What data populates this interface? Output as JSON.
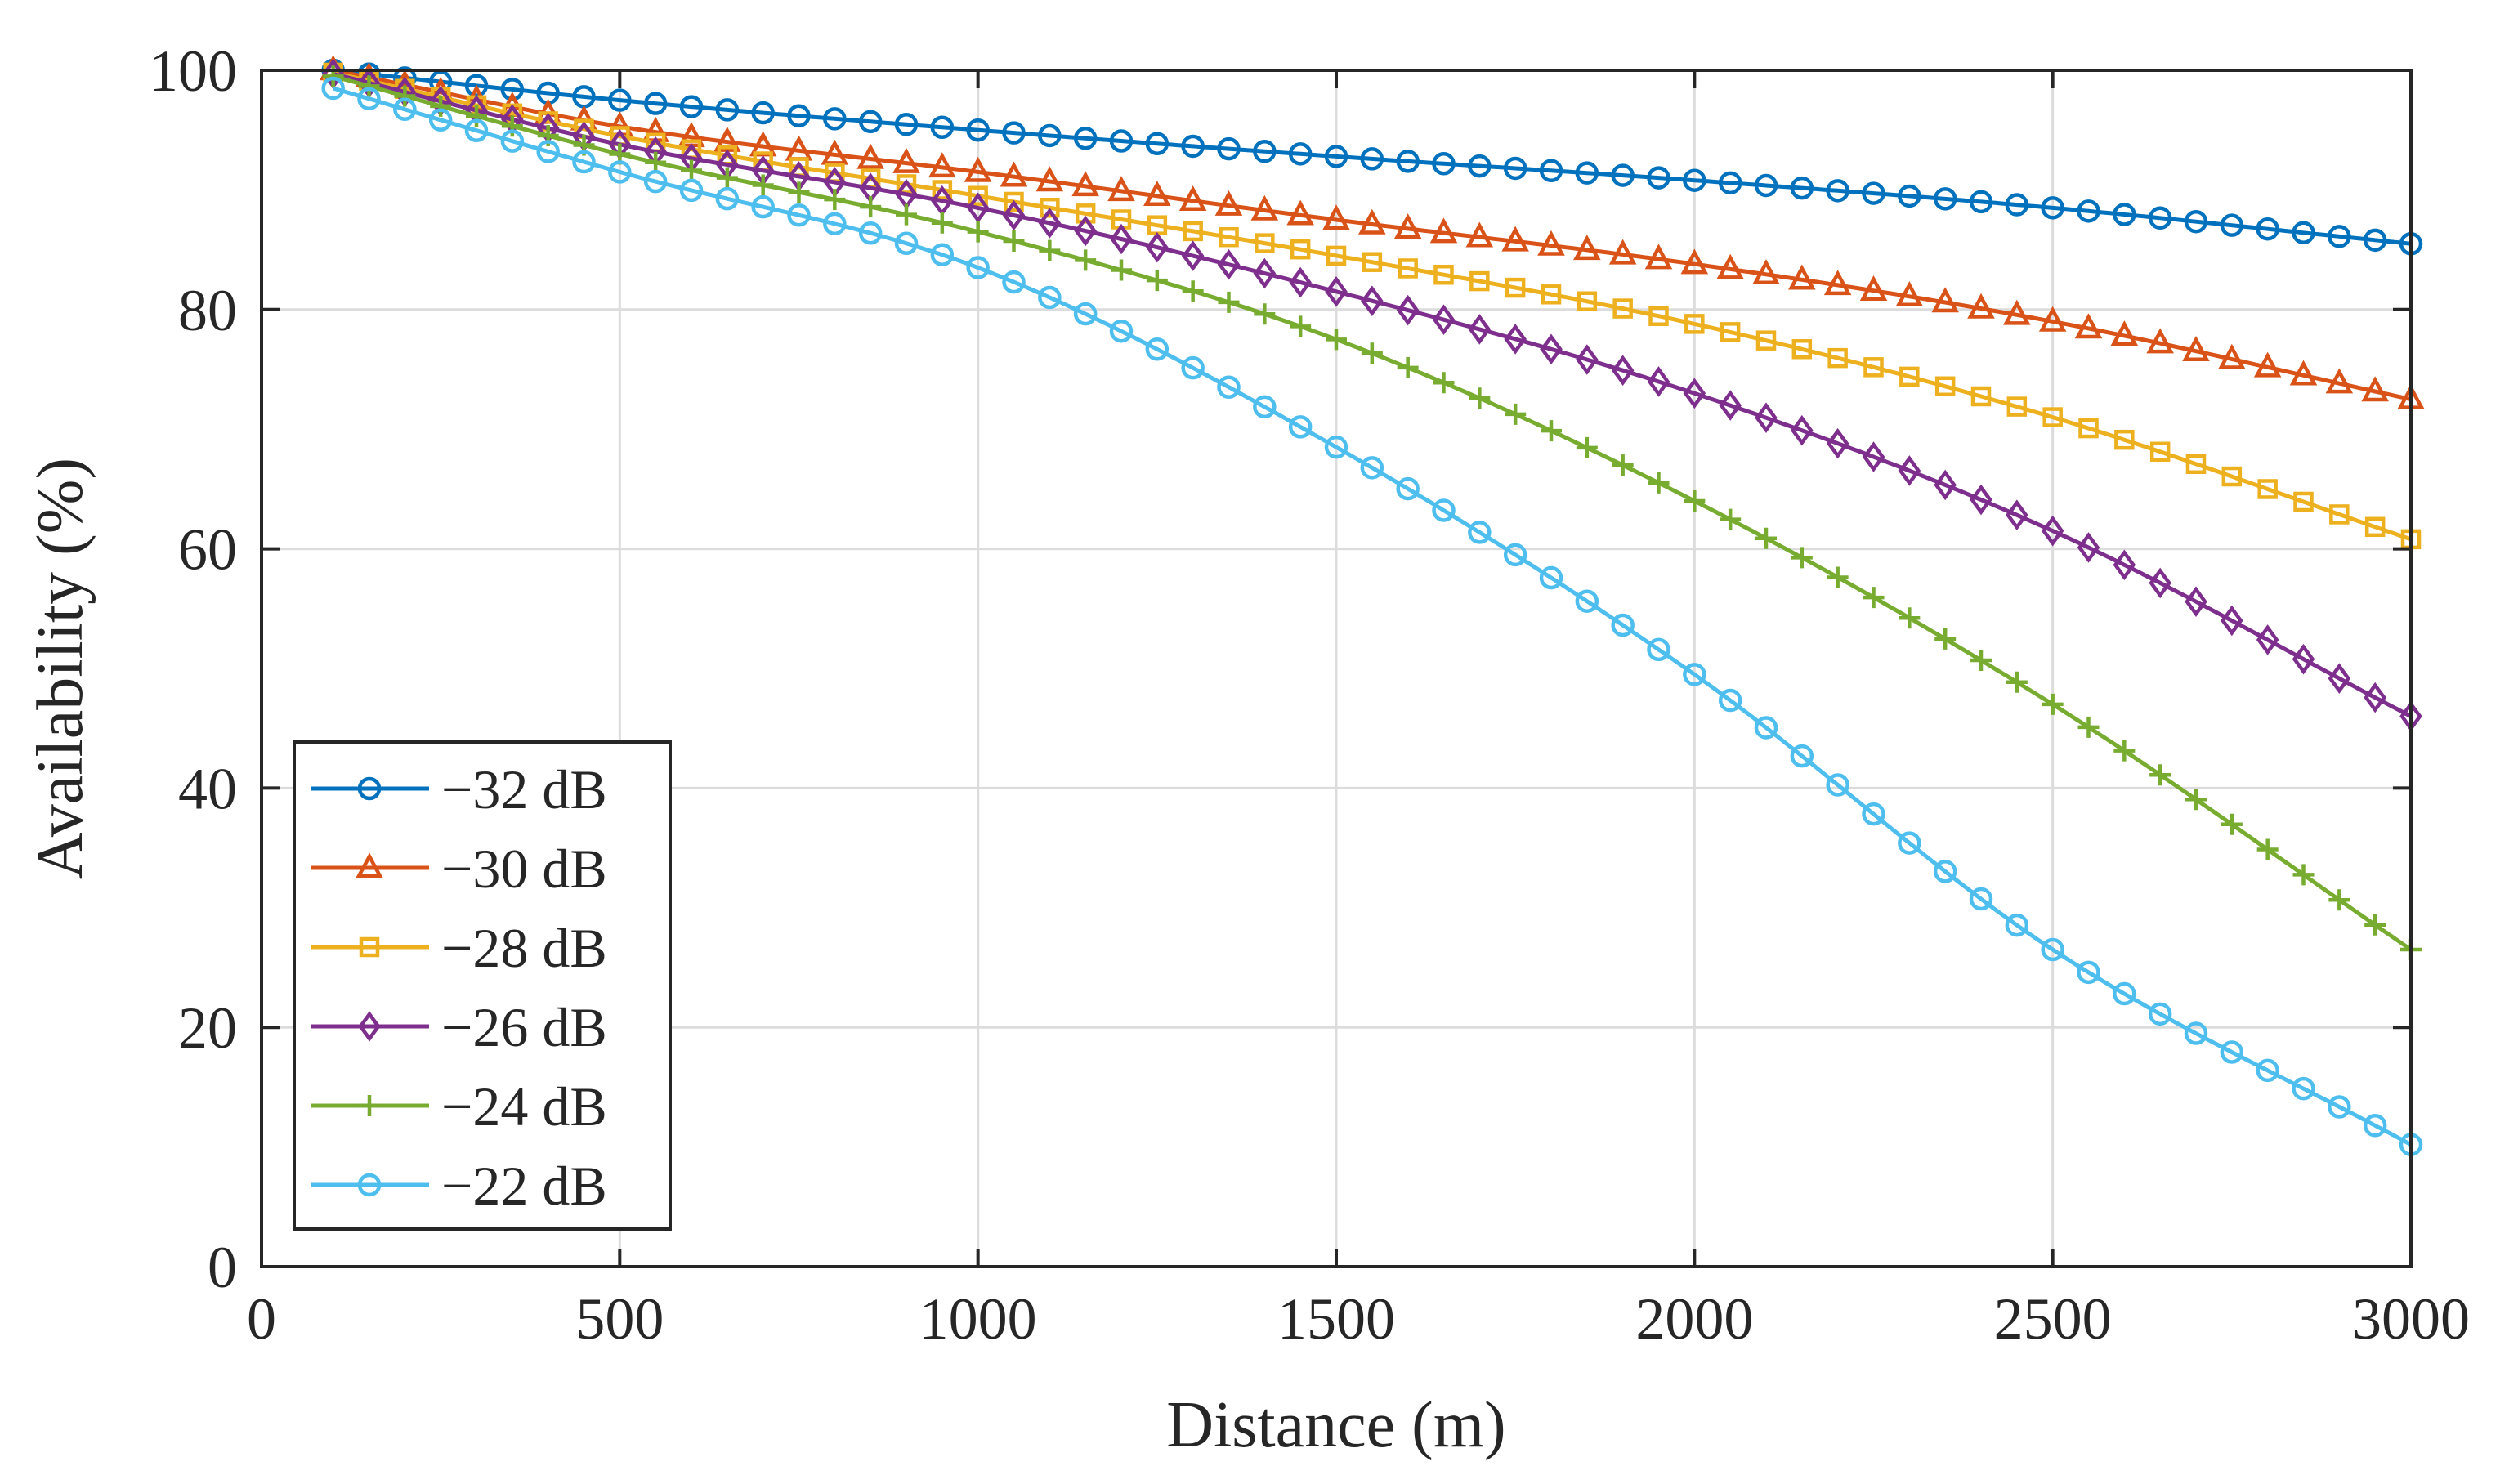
{
  "chart_data": {
    "type": "line",
    "title": "",
    "xlabel": "Distance (m)",
    "ylabel": "Availability (%)",
    "xlim": [
      0,
      3000
    ],
    "ylim": [
      0,
      100
    ],
    "xticks": [
      "0",
      "500",
      "1000",
      "1500",
      "2000",
      "2500",
      "3000"
    ],
    "yticks": [
      "0",
      "20",
      "40",
      "60",
      "80",
      "100"
    ],
    "grid": true,
    "legend_location": "lower-left",
    "x": [
      100,
      500,
      1000,
      1500,
      2000,
      2500,
      3000
    ],
    "series": [
      {
        "name": "−32 dB",
        "color": "#0072BD",
        "marker": "circle",
        "values": [
          100,
          97.5,
          95.0,
          92.8,
          90.8,
          88.5,
          85.5
        ]
      },
      {
        "name": "−30 dB",
        "color": "#D95319",
        "marker": "triangle",
        "values": [
          100,
          95.3,
          91.5,
          87.5,
          83.8,
          79.0,
          72.5
        ]
      },
      {
        "name": "−28 dB",
        "color": "#EDB120",
        "marker": "square",
        "values": [
          99.8,
          94.5,
          89.5,
          84.5,
          78.8,
          71.0,
          60.8
        ]
      },
      {
        "name": "−26 dB",
        "color": "#7E2F8E",
        "marker": "diamond",
        "values": [
          99.7,
          93.8,
          88.5,
          81.5,
          73.0,
          61.5,
          46.0
        ]
      },
      {
        "name": "−24 dB",
        "color": "#77AC30",
        "marker": "plus",
        "values": [
          99.5,
          93.0,
          86.5,
          77.5,
          64.0,
          47.0,
          26.5
        ]
      },
      {
        "name": "−22 dB",
        "color": "#4DBEEE",
        "marker": "circle",
        "values": [
          98.5,
          91.5,
          83.5,
          68.5,
          49.5,
          26.5,
          10.2
        ]
      }
    ]
  }
}
